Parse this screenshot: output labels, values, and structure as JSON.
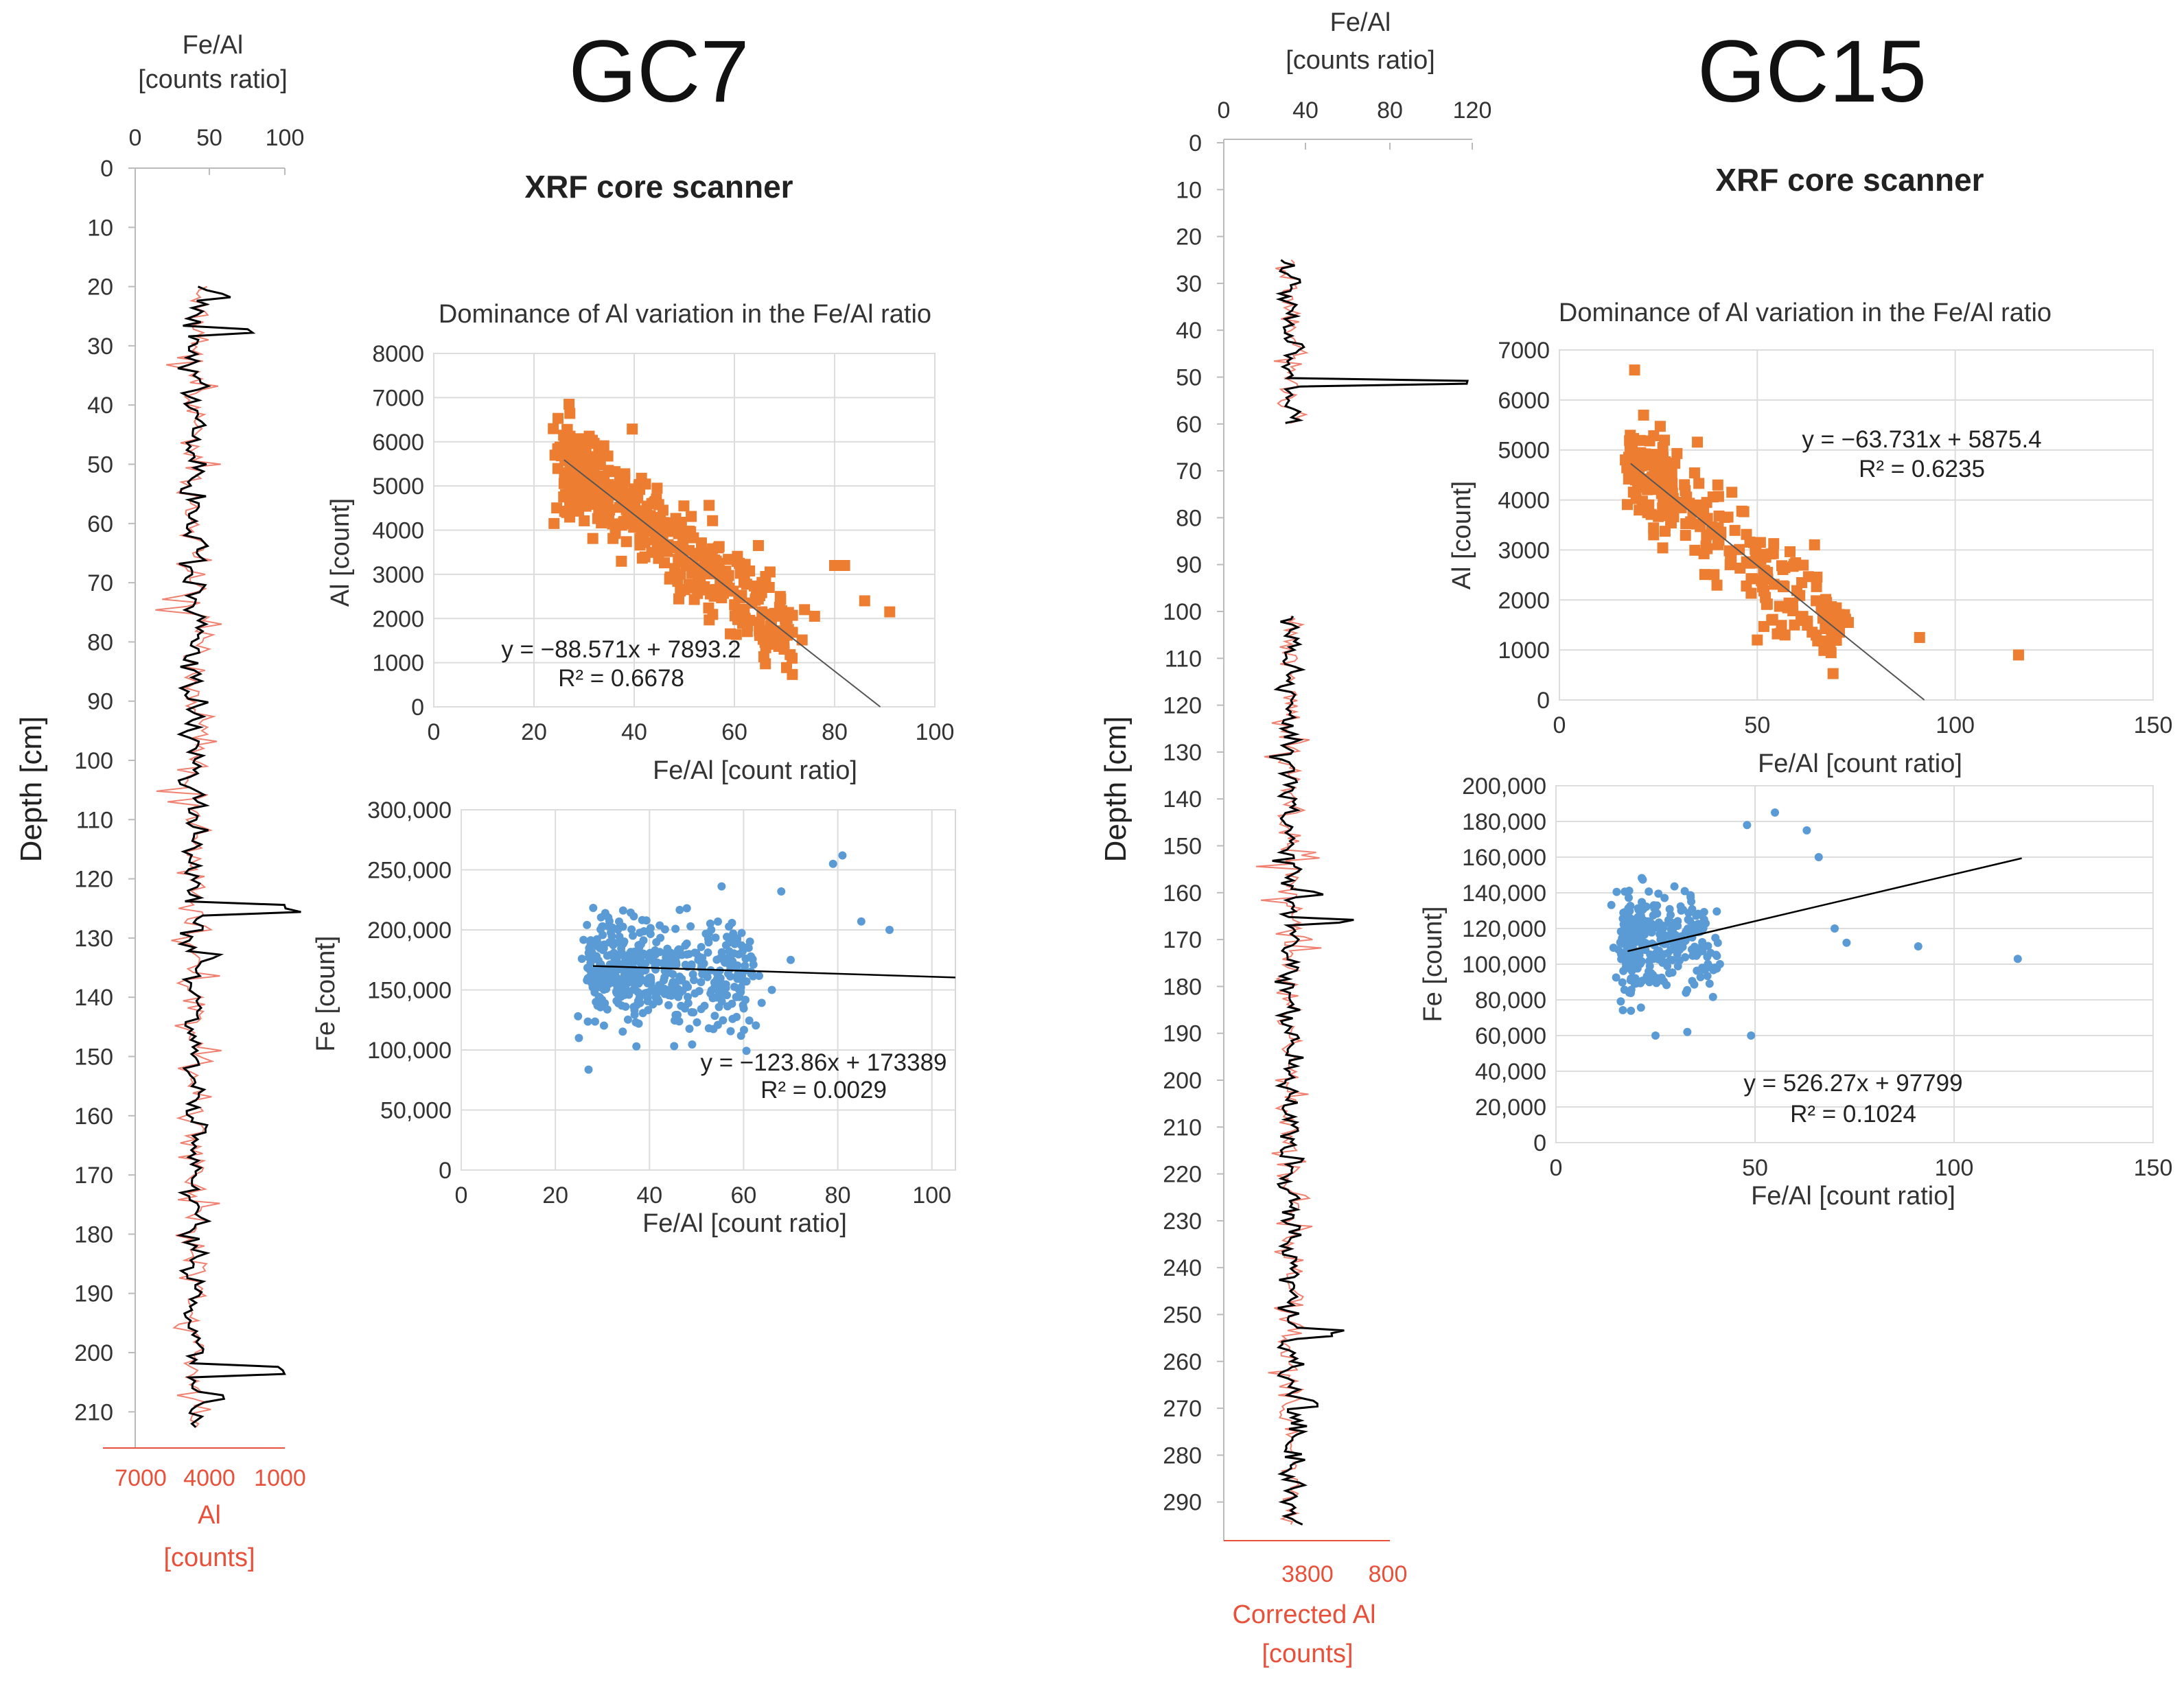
{
  "panels": {
    "gc7": {
      "title": "GC7",
      "subtitle": "XRF core scanner",
      "profile": {
        "top_label_1": "Fe/Al",
        "top_label_2": "[counts ratio]",
        "top_ticks": [
          "0",
          "50",
          "100"
        ],
        "depth_label": "Depth  [cm]",
        "depth_ticks": [
          "0",
          "10",
          "20",
          "30",
          "40",
          "50",
          "60",
          "70",
          "80",
          "90",
          "100",
          "110",
          "120",
          "130",
          "140",
          "150",
          "160",
          "170",
          "180",
          "190",
          "200",
          "210"
        ],
        "bottom_ticks": [
          "7000",
          "4000",
          "1000"
        ],
        "bottom_label_1": "Al",
        "bottom_label_2": "[counts]",
        "depth_range": [
          20,
          213
        ]
      }
    },
    "gc15": {
      "title": "GC15",
      "subtitle": "XRF core scanner",
      "profile": {
        "top_label_1": "Fe/Al",
        "top_label_2": "[counts ratio]",
        "top_ticks": [
          "0",
          "40",
          "80",
          "120"
        ],
        "depth_label": "Depth  [cm]",
        "depth_ticks": [
          "0",
          "10",
          "20",
          "30",
          "40",
          "50",
          "60",
          "70",
          "80",
          "90",
          "100",
          "110",
          "120",
          "130",
          "140",
          "150",
          "160",
          "170",
          "180",
          "190",
          "200",
          "210",
          "220",
          "230",
          "240",
          "250",
          "260",
          "270",
          "280",
          "290"
        ],
        "bottom_ticks": [
          "3800",
          "800"
        ],
        "bottom_label_1": "Corrected Al",
        "bottom_label_2": "[counts]",
        "segments": [
          [
            25,
            60
          ],
          [
            101,
            295
          ]
        ]
      }
    }
  },
  "chart_data": [
    {
      "id": "gc7_al",
      "type": "scatter",
      "title": "Dominance of Al variation in the Fe/Al ratio",
      "xlabel": "Fe/Al [count ratio]",
      "ylabel": "Al [count]",
      "xlim": [
        0,
        100
      ],
      "ylim": [
        0,
        8000
      ],
      "xticks": [
        "0",
        "20",
        "40",
        "60",
        "80",
        "100"
      ],
      "yticks": [
        "0",
        "1000",
        "2000",
        "3000",
        "4000",
        "5000",
        "6000",
        "7000",
        "8000"
      ],
      "color": "#ed7d31",
      "marker": "square",
      "trend": {
        "slope": -88.571,
        "intercept": 7893.2
      },
      "equation": "y = −88.571x + 7893.2",
      "r2": "R² = 0.6678",
      "cluster": {
        "x_range": [
          26,
          72
        ],
        "y_center_intercept": 7893.2,
        "y_center_slope": -88.571,
        "y_spread": 500,
        "n": 420
      },
      "outliers": [
        {
          "x": 27,
          "y": 6850
        },
        {
          "x": 24,
          "y": 4150
        },
        {
          "x": 80,
          "y": 3200
        },
        {
          "x": 82,
          "y": 3200
        },
        {
          "x": 86,
          "y": 2400
        },
        {
          "x": 91,
          "y": 2150
        },
        {
          "x": 76,
          "y": 2050
        },
        {
          "x": 74,
          "y": 2200
        }
      ]
    },
    {
      "id": "gc7_fe",
      "type": "scatter",
      "title": "",
      "xlabel": "Fe/Al [count ratio]",
      "ylabel": "Fe [count]",
      "xlim": [
        0,
        105
      ],
      "ylim": [
        0,
        300000
      ],
      "xticks": [
        "0",
        "20",
        "40",
        "60",
        "80",
        "100"
      ],
      "yticks": [
        "0",
        "50,000",
        "100,000",
        "150,000",
        "200,000",
        "250,000",
        "300,000"
      ],
      "color": "#5b9bd5",
      "marker": "circle",
      "trend": {
        "slope": -123.86,
        "intercept": 173389
      },
      "equation": "y = −123.86x + 173389",
      "r2": "R² = 0.0029",
      "cluster": {
        "x_range": [
          28,
          62
        ],
        "y_center_intercept": 168000,
        "y_center_slope": -60,
        "y_spread": 22000,
        "n": 520
      },
      "outliers": [
        {
          "x": 81,
          "y": 262000
        },
        {
          "x": 79,
          "y": 255000
        },
        {
          "x": 85,
          "y": 207000
        },
        {
          "x": 91,
          "y": 200000
        },
        {
          "x": 68,
          "y": 232000
        },
        {
          "x": 25,
          "y": 110000
        },
        {
          "x": 70,
          "y": 175000
        },
        {
          "x": 66,
          "y": 150000
        }
      ]
    },
    {
      "id": "gc15_al",
      "type": "scatter",
      "title": "Dominance of Al variation in the Fe/Al ratio",
      "xlabel": "Fe/Al [count ratio]",
      "ylabel": "Al [count]",
      "xlim": [
        0,
        150
      ],
      "ylim": [
        0,
        7000
      ],
      "xticks": [
        "0",
        "50",
        "100",
        "150"
      ],
      "yticks": [
        "0",
        "1000",
        "2000",
        "3000",
        "4000",
        "5000",
        "6000",
        "7000"
      ],
      "color": "#ed7d31",
      "marker": "square",
      "trend": {
        "slope": -63.731,
        "intercept": 5875.4
      },
      "equation": "y = −63.731x + 5875.4",
      "r2": "R² = 0.6235",
      "cluster": {
        "x_range": [
          18,
          72
        ],
        "y_center_intercept": 5875.4,
        "y_center_slope": -63.731,
        "y_spread": 450,
        "n": 300
      },
      "outliers": [
        {
          "x": 19,
          "y": 6600
        },
        {
          "x": 91,
          "y": 1250
        },
        {
          "x": 116,
          "y": 900
        },
        {
          "x": 50,
          "y": 1200
        },
        {
          "x": 57,
          "y": 1300
        },
        {
          "x": 73,
          "y": 1550
        }
      ]
    },
    {
      "id": "gc15_fe",
      "type": "scatter",
      "title": "",
      "xlabel": "Fe/Al [count ratio]",
      "ylabel": "Fe [count]",
      "xlim": [
        0,
        150
      ],
      "ylim": [
        0,
        200000
      ],
      "xticks": [
        "0",
        "50",
        "100",
        "150"
      ],
      "yticks": [
        "0",
        "20,000",
        "40,000",
        "60,000",
        "80,000",
        "100,000",
        "120,000",
        "140,000",
        "160,000",
        "180,000",
        "200,000"
      ],
      "color": "#5b9bd5",
      "marker": "circle",
      "trend": {
        "slope": 526.27,
        "intercept": 97799
      },
      "equation": "y = 526.27x + 97799",
      "r2": "R² = 0.1024",
      "cluster": {
        "x_range": [
          17,
          40
        ],
        "y_center_intercept": 108000,
        "y_center_slope": 200,
        "y_spread": 14000,
        "n": 320
      },
      "outliers": [
        {
          "x": 55,
          "y": 185000
        },
        {
          "x": 48,
          "y": 178000
        },
        {
          "x": 63,
          "y": 175000
        },
        {
          "x": 66,
          "y": 160000
        },
        {
          "x": 91,
          "y": 110000
        },
        {
          "x": 116,
          "y": 103000
        },
        {
          "x": 25,
          "y": 60000
        },
        {
          "x": 49,
          "y": 60000
        },
        {
          "x": 33,
          "y": 62000
        },
        {
          "x": 73,
          "y": 112000
        },
        {
          "x": 70,
          "y": 120000
        }
      ]
    }
  ]
}
